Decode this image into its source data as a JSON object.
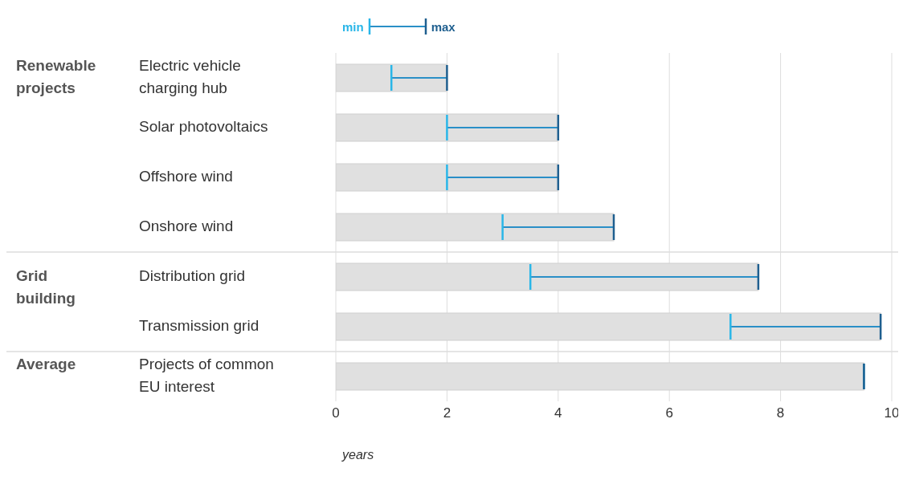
{
  "chart_data": {
    "type": "bar",
    "orientation": "horizontal",
    "xlabel": "years",
    "categories": [
      "Electric vehicle charging hub",
      "Solar photovoltaics",
      "Offshore wind",
      "Onshore wind",
      "Distribution grid",
      "Transmission grid",
      "Projects of common EU interest"
    ],
    "values": [
      2,
      4,
      4,
      5,
      7.6,
      9.8,
      9.5
    ],
    "errors": [
      [
        1,
        2
      ],
      [
        2,
        4
      ],
      [
        2,
        4
      ],
      [
        3,
        5
      ],
      [
        3.5,
        7.6
      ],
      [
        7.1,
        9.8
      ],
      [
        9.5,
        9.5
      ]
    ],
    "color": "#e0e0e0",
    "xlim": [
      0,
      10
    ],
    "xticks": [
      0,
      2,
      4,
      6,
      8,
      10
    ],
    "grid": "x",
    "annotations": [
      "min",
      "max",
      "Renewable projects",
      "Grid building",
      "Average"
    ]
  }
}
